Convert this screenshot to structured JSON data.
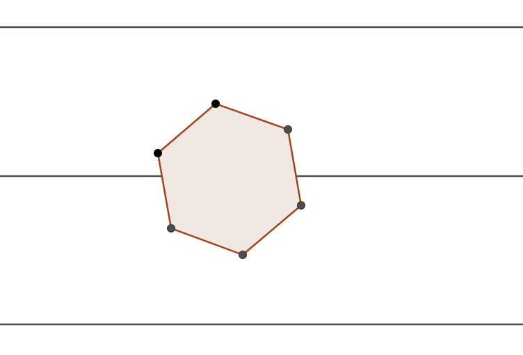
{
  "colors": {
    "background": "#ffffff",
    "line": "#4d4d4d",
    "polygon_stroke": "#a0441a",
    "polygon_fill": "#f2e8e3",
    "free_point": "#000000",
    "dependent_point": "#4d4d4d"
  },
  "diagram": {
    "type": "regular-hexagon-between-parallel-lines",
    "parallel_line_count": 3,
    "hexagon_sides": 6,
    "free_vertices": 2,
    "dependent_vertices": 4
  }
}
